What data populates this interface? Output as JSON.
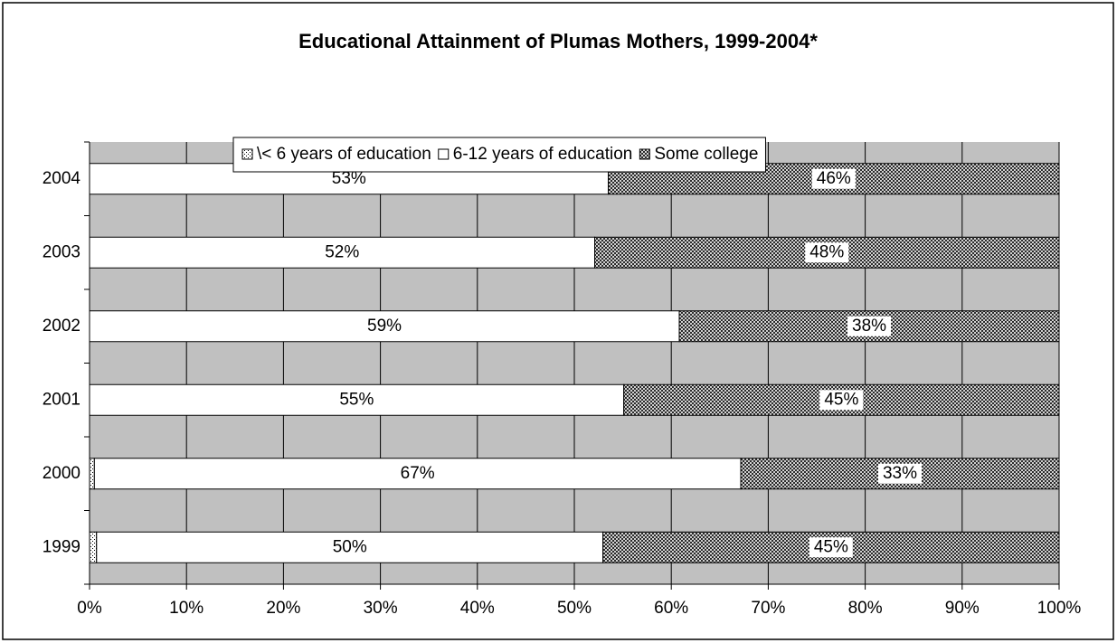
{
  "chart_data": {
    "type": "bar",
    "orientation": "horizontal",
    "stacked": "percent",
    "title": "Educational Attainment of Plumas Mothers, 1999-2004*",
    "categories": [
      "1999",
      "2000",
      "2001",
      "2002",
      "2003",
      "2004"
    ],
    "series": [
      {
        "name": "\\< 6 years of education",
        "color": "#ffffff",
        "pattern": "dots",
        "values": [
          0.7,
          0.5,
          0,
          0,
          0,
          0
        ]
      },
      {
        "name": "6-12 years of education",
        "color": "#ffffff",
        "pattern": "none",
        "values": [
          50.4,
          67,
          55.1,
          59,
          52.1,
          53.4
        ],
        "value_labels": [
          "50%",
          "67%",
          "55%",
          "59%",
          "52%",
          "53%"
        ]
      },
      {
        "name": "Some college",
        "color": "#ffffff",
        "pattern": "crosshatch",
        "values": [
          45.4,
          33,
          44.9,
          38,
          47.9,
          46.4
        ],
        "value_labels": [
          "45%",
          "33%",
          "45%",
          "38%",
          "48%",
          "46%"
        ]
      }
    ],
    "xlim": [
      0,
      100
    ],
    "xticks": [
      {
        "value": 0,
        "label": "0%"
      },
      {
        "value": 10,
        "label": "10%"
      },
      {
        "value": 20,
        "label": "20%"
      },
      {
        "value": 30,
        "label": "30%"
      },
      {
        "value": 40,
        "label": "40%"
      },
      {
        "value": 50,
        "label": "50%"
      },
      {
        "value": 60,
        "label": "60%"
      },
      {
        "value": 70,
        "label": "70%"
      },
      {
        "value": 80,
        "label": "80%"
      },
      {
        "value": 90,
        "label": "90%"
      },
      {
        "value": 100,
        "label": "100%"
      }
    ],
    "grid": true,
    "legend": "top",
    "plot_background": "#c0c0c0"
  }
}
